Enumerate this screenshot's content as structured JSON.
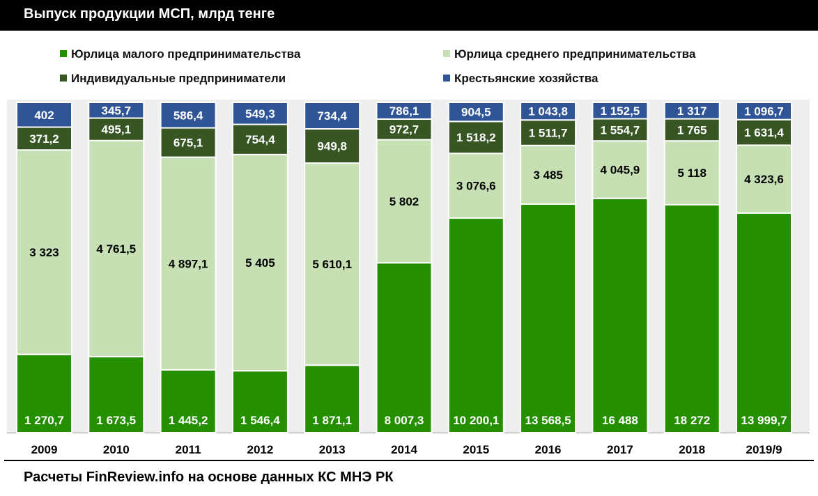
{
  "title": "Выпуск продукции МСП, млрд тенге",
  "source": "Расчеты FinReview.info на основе данных КС МНЭ РК",
  "colors": {
    "small": "#249000",
    "medium": "#c6e0b4",
    "individual": "#375623",
    "farm": "#2f5597",
    "separator": "#ffffff",
    "label_dark": "#000000",
    "label_light": "#ffffff"
  },
  "chart_data": {
    "type": "bar",
    "stacked": true,
    "normalized": true,
    "categories": [
      "2009",
      "2010",
      "2011",
      "2012",
      "2013",
      "2014",
      "2015",
      "2016",
      "2017",
      "2018",
      "2019/9"
    ],
    "series": [
      {
        "name": "Юрлица малого предпринимательства",
        "color_key": "small",
        "values": [
          1270.7,
          1673.5,
          1445.2,
          1546.4,
          1871.1,
          8007.3,
          10200.1,
          13568.5,
          16488,
          18272,
          13999.7
        ],
        "labels": [
          "1 270,7",
          "1 673,5",
          "1 445,2",
          "1 546,4",
          "1 871,1",
          "8 007,3",
          "10 200,1",
          "13 568,5",
          "16 488",
          "18 272",
          "13 999,7"
        ]
      },
      {
        "name": "Юрлица среднего предпринимательства",
        "color_key": "medium",
        "values": [
          3323,
          4761.5,
          4897.1,
          5405,
          5610.1,
          5802,
          3076.6,
          3485,
          4045.9,
          5118,
          4323.6
        ],
        "labels": [
          "3 323",
          "4 761,5",
          "4 897,1",
          "5 405",
          "5 610,1",
          "5 802",
          "3 076,6",
          "3 485",
          "4 045,9",
          "5 118",
          "4 323,6"
        ]
      },
      {
        "name": "Индивидуальные предприниматели",
        "color_key": "individual",
        "values": [
          371.2,
          495.1,
          675.1,
          754.4,
          949.8,
          972.7,
          1518.2,
          1511.7,
          1554.7,
          1765,
          1631.4
        ],
        "labels": [
          "371,2",
          "495,1",
          "675,1",
          "754,4",
          "949,8",
          "972,7",
          "1 518,2",
          "1 511,7",
          "1 554,7",
          "1 765",
          "1 631,4"
        ]
      },
      {
        "name": "Крестьянские хозяйства",
        "color_key": "farm",
        "values": [
          402,
          345.7,
          586.4,
          549.3,
          734.4,
          786.1,
          904.5,
          1043.8,
          1152.5,
          1317,
          1096.7
        ],
        "labels": [
          "402",
          "345,7",
          "586,4",
          "549,3",
          "734,4",
          "786,1",
          "904,5",
          "1 043,8",
          "1 152,5",
          "1 317",
          "1 096,7"
        ]
      }
    ],
    "legend_position": "top",
    "grid": false,
    "ylim": [
      0,
      1
    ]
  }
}
